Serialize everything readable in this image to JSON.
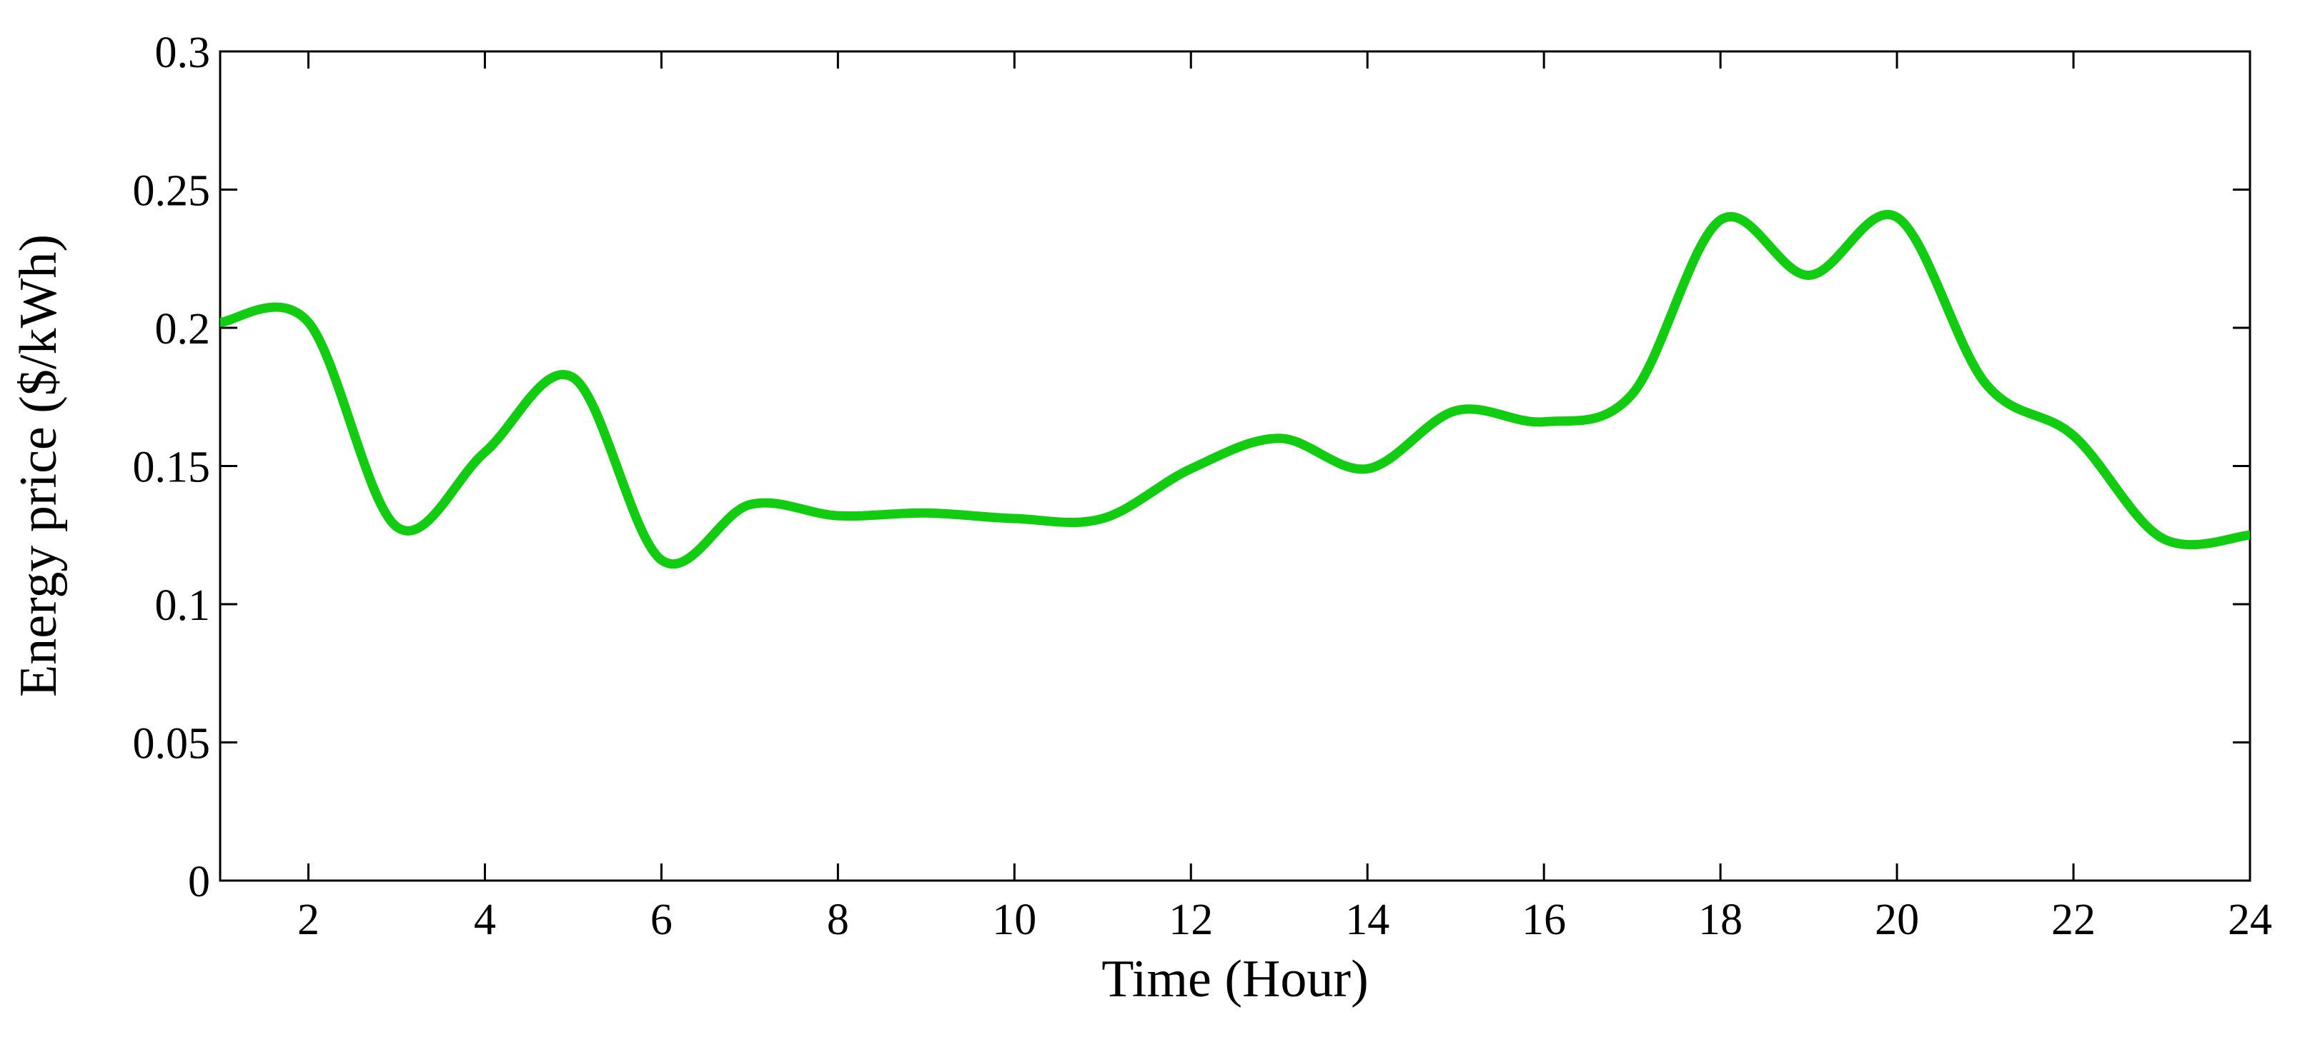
{
  "chart_data": {
    "type": "line",
    "x_label": "Time (Hour)",
    "y_label": "Energy price ($/kWh)",
    "x": [
      1,
      2,
      3,
      4,
      5,
      6,
      7,
      8,
      9,
      10,
      11,
      12,
      13,
      14,
      15,
      16,
      17,
      18,
      19,
      20,
      21,
      22,
      23,
      24
    ],
    "series": [
      {
        "color": "#11cc11",
        "values": [
          0.202,
          0.202,
          0.128,
          0.155,
          0.182,
          0.116,
          0.136,
          0.132,
          0.133,
          0.131,
          0.131,
          0.149,
          0.16,
          0.149,
          0.17,
          0.166,
          0.176,
          0.239,
          0.219,
          0.24,
          0.18,
          0.161,
          0.124,
          0.125
        ]
      }
    ],
    "xlim": [
      1,
      24
    ],
    "xticks": [
      2,
      4,
      6,
      8,
      10,
      12,
      14,
      16,
      18,
      20,
      22,
      24
    ],
    "ylim": [
      0,
      0.3
    ],
    "yticks": [
      0,
      0.05,
      0.1,
      0.15,
      0.2,
      0.25,
      0.3
    ],
    "grid": false
  }
}
